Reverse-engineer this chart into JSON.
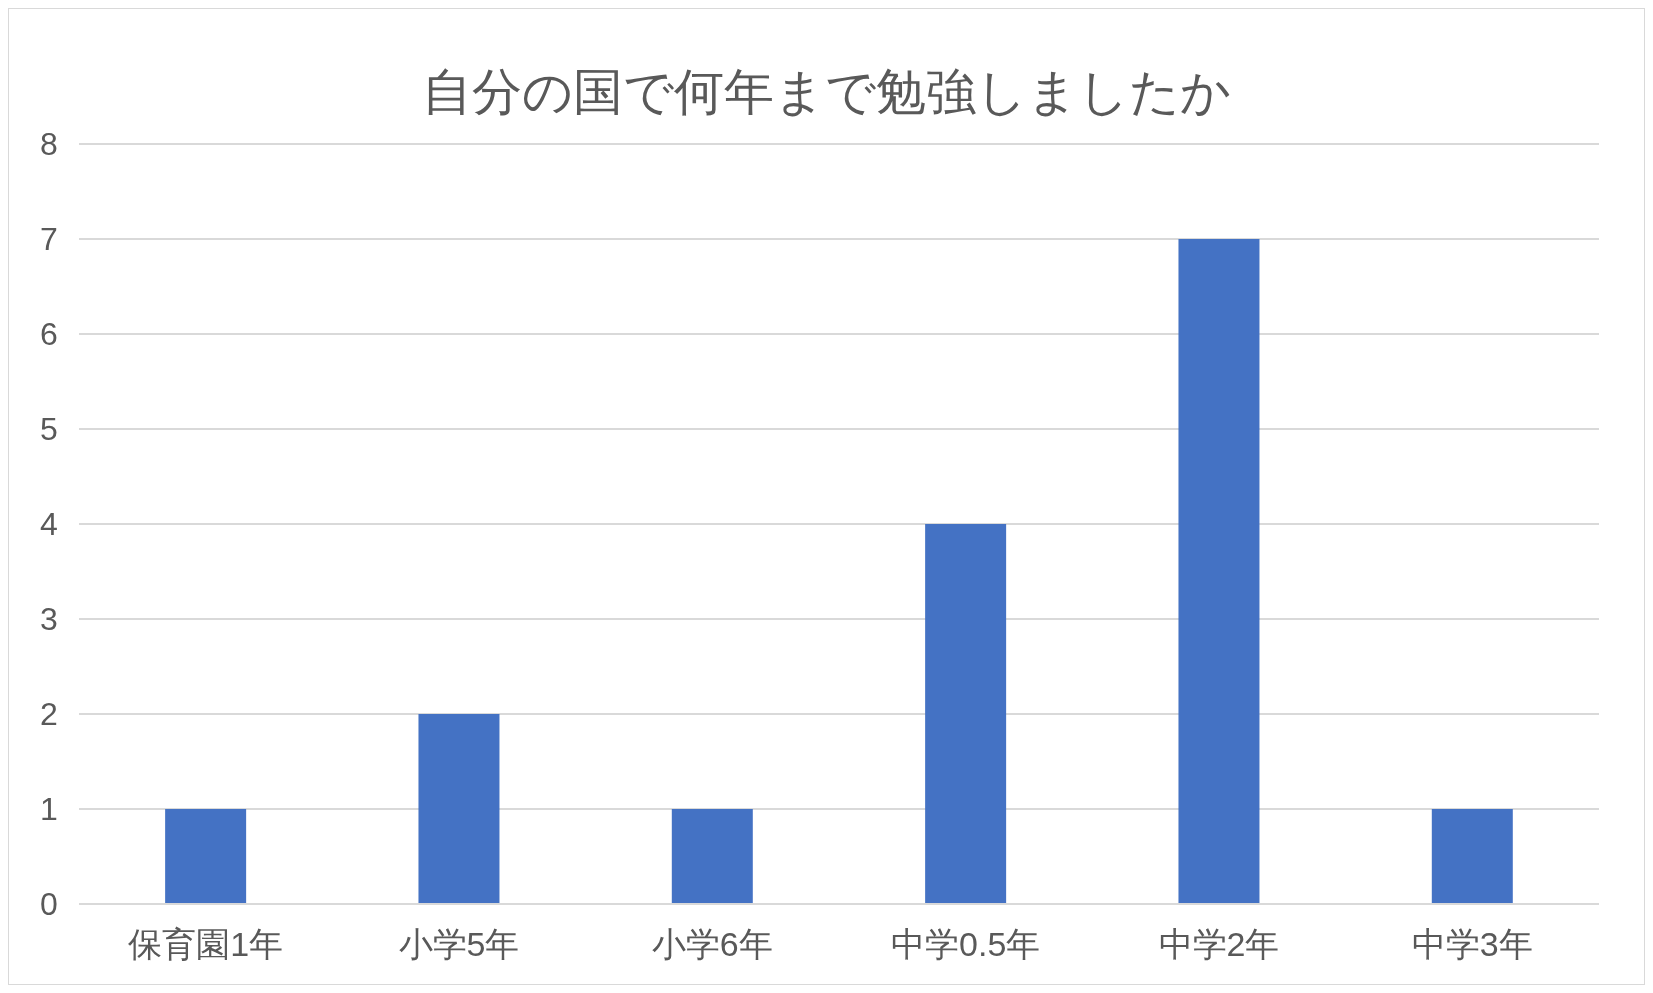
{
  "chart_data": {
    "type": "bar",
    "title": "自分の国で何年まで勉強しましたか",
    "categories": [
      "保育園1年",
      "小学5年",
      "小学6年",
      "中学0.5年",
      "中学2年",
      "中学3年"
    ],
    "values": [
      1,
      2,
      1,
      4,
      7,
      1
    ],
    "color": "#4472c4",
    "ylim": [
      0,
      8
    ],
    "yticks": [
      0,
      1,
      2,
      3,
      4,
      5,
      6,
      7,
      8
    ],
    "grid": "y",
    "legend": false
  }
}
